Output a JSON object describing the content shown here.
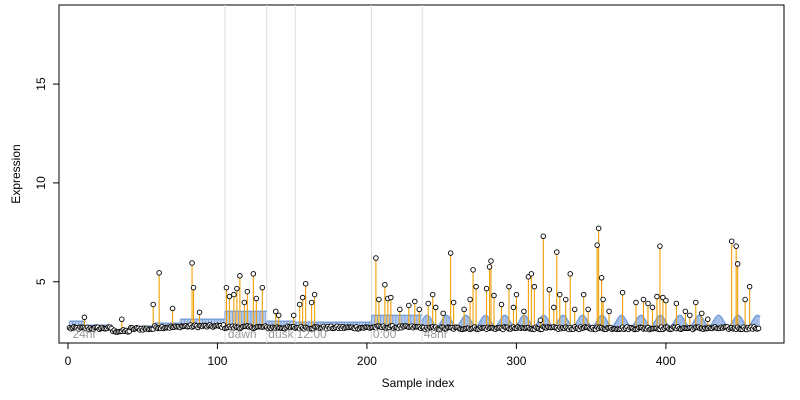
{
  "chart_data": {
    "type": "scatter",
    "title": "",
    "xlabel": "Sample index",
    "ylabel": "Expression",
    "xlim": [
      -6,
      479
    ],
    "ylim": [
      1.9,
      19.0
    ],
    "x_ticks": [
      0,
      100,
      200,
      300,
      400
    ],
    "y_ticks": [
      5,
      10,
      15
    ],
    "grid": false,
    "colors": {
      "stem": "#f0a000",
      "band": "#7aa0dc",
      "band_low": "#c07850",
      "point_stroke": "#000000",
      "boundary": "#dddddd",
      "segment_label": "#9a9a9a"
    },
    "segment_boundaries": [
      105,
      133,
      152,
      203,
      237
    ],
    "segment_labels": [
      {
        "x": 3,
        "label": "24hr"
      },
      {
        "x": 107,
        "label": "dawn"
      },
      {
        "x": 134,
        "label": "dusk"
      },
      {
        "x": 153,
        "label": "12:00"
      },
      {
        "x": 204,
        "label": "0:00"
      },
      {
        "x": 238,
        "label": "48hr"
      }
    ],
    "baseline": [
      {
        "from": 1,
        "to": 30,
        "y": 2.65
      },
      {
        "from": 30,
        "to": 42,
        "y": 2.5
      },
      {
        "from": 42,
        "to": 58,
        "y": 2.62
      },
      {
        "from": 58,
        "to": 75,
        "y": 2.7
      },
      {
        "from": 75,
        "to": 105,
        "y": 2.75
      },
      {
        "from": 105,
        "to": 133,
        "y": 2.7
      },
      {
        "from": 133,
        "to": 152,
        "y": 2.68
      },
      {
        "from": 152,
        "to": 203,
        "y": 2.68
      },
      {
        "from": 203,
        "to": 237,
        "y": 2.7
      },
      {
        "from": 237,
        "to": 463,
        "y": 2.65
      }
    ],
    "bands": [
      {
        "from": 1,
        "to": 12,
        "upper": 3.0
      },
      {
        "from": 12,
        "to": 30,
        "upper": 2.8
      },
      {
        "from": 30,
        "to": 42,
        "upper": 2.4,
        "low": true
      },
      {
        "from": 42,
        "to": 58,
        "upper": 2.75
      },
      {
        "from": 58,
        "to": 75,
        "upper": 2.9
      },
      {
        "from": 75,
        "to": 105,
        "upper": 3.1
      },
      {
        "from": 105,
        "to": 133,
        "upper": 3.5
      },
      {
        "from": 133,
        "to": 152,
        "upper": 3.0
      },
      {
        "from": 152,
        "to": 203,
        "upper": 2.95
      },
      {
        "from": 203,
        "to": 237,
        "upper": 3.3
      }
    ],
    "wave": {
      "from": 237,
      "to": 463,
      "period": 13,
      "amplitude": 0.55,
      "base": 2.75
    },
    "peaks": [
      [
        11,
        3.2
      ],
      [
        36,
        3.1
      ],
      [
        57,
        3.85
      ],
      [
        61,
        5.45
      ],
      [
        70,
        3.65
      ],
      [
        83,
        5.95
      ],
      [
        84,
        4.7
      ],
      [
        88,
        3.45
      ],
      [
        106,
        4.7
      ],
      [
        108,
        4.25
      ],
      [
        111,
        4.35
      ],
      [
        113,
        4.65
      ],
      [
        115,
        5.3
      ],
      [
        118,
        3.95
      ],
      [
        120,
        4.5
      ],
      [
        124,
        5.4
      ],
      [
        126,
        4.15
      ],
      [
        130,
        4.7
      ],
      [
        139,
        3.5
      ],
      [
        141,
        3.3
      ],
      [
        151,
        3.3
      ],
      [
        155,
        3.85
      ],
      [
        157,
        4.2
      ],
      [
        159,
        4.9
      ],
      [
        163,
        3.95
      ],
      [
        165,
        4.35
      ],
      [
        206,
        6.2
      ],
      [
        208,
        4.1
      ],
      [
        212,
        4.85
      ],
      [
        214,
        4.15
      ],
      [
        216,
        4.2
      ],
      [
        222,
        3.6
      ],
      [
        228,
        3.8
      ],
      [
        232,
        4.0
      ],
      [
        235,
        3.6
      ],
      [
        241,
        3.9
      ],
      [
        244,
        4.35
      ],
      [
        246,
        3.7
      ],
      [
        251,
        3.4
      ],
      [
        256,
        6.45
      ],
      [
        258,
        3.95
      ],
      [
        265,
        3.6
      ],
      [
        269,
        4.1
      ],
      [
        271,
        5.6
      ],
      [
        273,
        4.75
      ],
      [
        280,
        4.65
      ],
      [
        282,
        5.75
      ],
      [
        283,
        6.05
      ],
      [
        285,
        4.3
      ],
      [
        290,
        3.85
      ],
      [
        295,
        4.75
      ],
      [
        298,
        3.7
      ],
      [
        300,
        4.35
      ],
      [
        305,
        3.5
      ],
      [
        308,
        5.25
      ],
      [
        310,
        5.4
      ],
      [
        312,
        4.75
      ],
      [
        316,
        3.05
      ],
      [
        318,
        7.3
      ],
      [
        322,
        4.6
      ],
      [
        325,
        3.7
      ],
      [
        327,
        6.5
      ],
      [
        329,
        4.35
      ],
      [
        333,
        4.1
      ],
      [
        336,
        5.4
      ],
      [
        339,
        3.6
      ],
      [
        345,
        4.35
      ],
      [
        348,
        3.6
      ],
      [
        354,
        6.85
      ],
      [
        355,
        7.7
      ],
      [
        357,
        5.2
      ],
      [
        358,
        4.1
      ],
      [
        362,
        3.5
      ],
      [
        371,
        4.45
      ],
      [
        380,
        3.95
      ],
      [
        385,
        4.1
      ],
      [
        388,
        3.9
      ],
      [
        391,
        3.7
      ],
      [
        394,
        4.25
      ],
      [
        396,
        6.8
      ],
      [
        398,
        4.2
      ],
      [
        400,
        4.05
      ],
      [
        407,
        3.9
      ],
      [
        413,
        3.5
      ],
      [
        416,
        3.3
      ],
      [
        420,
        3.95
      ],
      [
        424,
        3.4
      ],
      [
        428,
        3.1
      ],
      [
        444,
        7.05
      ],
      [
        447,
        6.8
      ],
      [
        448,
        5.9
      ],
      [
        453,
        4.1
      ],
      [
        456,
        4.75
      ]
    ]
  }
}
